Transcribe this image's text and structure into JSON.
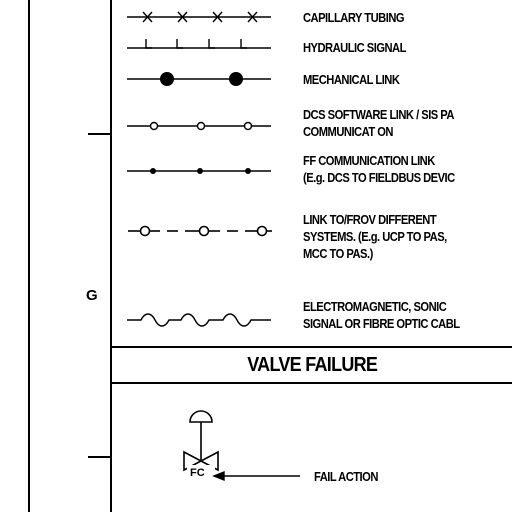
{
  "legend": {
    "items": [
      {
        "lines": [
          "CAPILLARY TUBING"
        ]
      },
      {
        "lines": [
          "HYDRAULIC SIGNAL"
        ]
      },
      {
        "lines": [
          "MECHANICAL LINK"
        ]
      },
      {
        "lines": [
          "DCS SOFTWARE LINK / SIS PA",
          "COMMUNICAT ON"
        ]
      },
      {
        "lines": [
          "FF COMMUNICATION LINK",
          "(E.g. DCS TO FIELDBUS DEVIC"
        ]
      },
      {
        "lines": [
          "LINK TO/FROV DIFFERENT",
          "SYSTEMS. (E.g. UCP TO PAS,",
          "MCC TO PAS.)"
        ]
      },
      {
        "lines": [
          "ELECTROMAGNETIC, SONIC",
          "SIGNAL OR FIBRE OPTIC CABL"
        ]
      }
    ]
  },
  "zone_letter": "G",
  "valve_failure": {
    "title": "VALVE FAILURE",
    "symbol_label": "FC",
    "callout": "FAIL ACTION"
  }
}
